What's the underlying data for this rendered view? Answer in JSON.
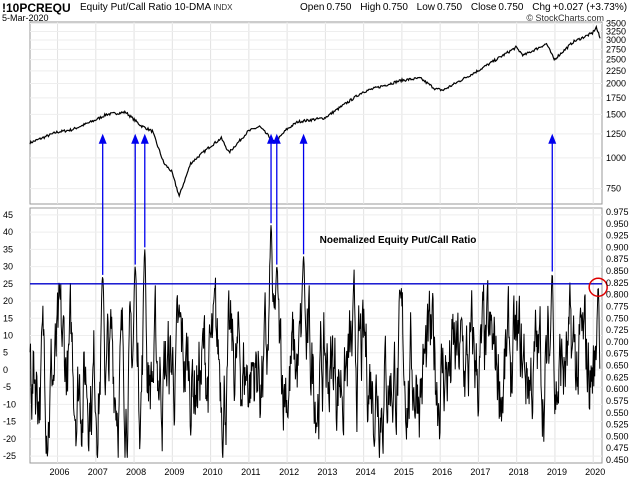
{
  "header": {
    "symbol": "!10PCREQU",
    "subtitle": "Equity Put/Call Ratio 10-DMA",
    "exchange": "INDX",
    "date": "5-Mar-2020",
    "open_label": "Open",
    "open": "0.750",
    "high_label": "High",
    "high": "0.750",
    "low_label": "Low",
    "low": "0.750",
    "close_label": "Close",
    "close": "0.750",
    "chg_label": "Chg",
    "chg": "+0.027 (+3.73%)",
    "chg_icon": "up-triangle-icon",
    "credit": "© StockCharts.com"
  },
  "chart_data": {
    "type": "line",
    "x_ticks": [
      "2006",
      "2007",
      "2008",
      "2009",
      "2010",
      "2011",
      "2012",
      "2013",
      "2014",
      "2015",
      "2016",
      "2017",
      "2018",
      "2019",
      "2020"
    ],
    "upper_panel": {
      "series": [
        {
          "x": [
            2005.3,
            2006.0,
            2006.4,
            2007.0,
            2007.3,
            2007.8,
            2008.2,
            2008.5,
            2008.8,
            2009.0,
            2009.2,
            2009.5,
            2010.0,
            2010.3,
            2010.5,
            2011.0,
            2011.3,
            2011.7,
            2012.0,
            2012.3,
            2013.0,
            2014.0,
            2015.0,
            2015.5,
            2015.9,
            2016.1,
            2017.0,
            2018.0,
            2018.2,
            2018.8,
            2019.0,
            2019.5,
            2020.0,
            2020.1,
            2020.2
          ],
          "values": [
            1150,
            1270,
            1300,
            1420,
            1500,
            1530,
            1350,
            1280,
            950,
            880,
            700,
            950,
            1110,
            1200,
            1050,
            1280,
            1340,
            1150,
            1300,
            1400,
            1450,
            1850,
            2060,
            2100,
            1900,
            1880,
            2250,
            2800,
            2600,
            2900,
            2500,
            2950,
            3200,
            3380,
            3050
          ]
        }
      ],
      "y_ticks": [
        "750",
        "1000",
        "1250",
        "1500",
        "1750",
        "2000",
        "2250",
        "2500",
        "2750",
        "3000",
        "3250",
        "3500"
      ],
      "scale": "log"
    },
    "lower_panel": {
      "annotation": "Noemalized Equity Put/Call Ratio",
      "left_ticks": [
        "-25",
        "-20",
        "-15",
        "-10",
        "-5",
        "0",
        "5",
        "10",
        "15",
        "20",
        "25",
        "30",
        "35",
        "40",
        "45"
      ],
      "right_ticks": [
        "0.450",
        "0.475",
        "0.500",
        "0.525",
        "0.550",
        "0.575",
        "0.600",
        "0.625",
        "0.650",
        "0.675",
        "0.700",
        "0.725",
        "0.750",
        "0.775",
        "0.800",
        "0.825",
        "0.850",
        "0.875",
        "0.900",
        "0.925",
        "0.950",
        "0.975"
      ],
      "threshold": 25,
      "spikes": [
        {
          "x": 2007.2,
          "y": 27
        },
        {
          "x": 2008.05,
          "y": 30
        },
        {
          "x": 2008.3,
          "y": 35
        },
        {
          "x": 2011.6,
          "y": 42
        },
        {
          "x": 2011.75,
          "y": 30
        },
        {
          "x": 2012.45,
          "y": 33
        },
        {
          "x": 2018.95,
          "y": 28
        },
        {
          "x": 2020.15,
          "y": 24
        }
      ],
      "colors": {
        "threshold": "#0000cc",
        "arrows": "#0000ee",
        "circle": "#dd0000"
      }
    },
    "grid": true,
    "legend": "none"
  }
}
